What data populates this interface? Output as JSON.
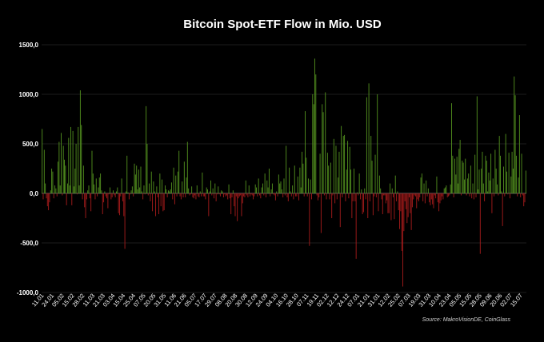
{
  "chart_data": {
    "type": "bar",
    "title": "Bitcoin Spot-ETF Flow in Mio. USD",
    "xlabel": "",
    "ylabel": "",
    "ylim": [
      -1000,
      1500
    ],
    "yticks": [
      -1000,
      -500,
      0,
      500,
      1000,
      1500
    ],
    "ytick_labels": [
      "-1000,0",
      "-500,0",
      "0,0",
      "500,0",
      "1000,0",
      "1500,0"
    ],
    "grid": true,
    "positive_color": "#4f8a1d",
    "negative_color": "#9e1a1a",
    "source": "Source: MakroVisionDE, CoinGlass",
    "x_labels": [
      "11.01",
      "24.01",
      "05.02",
      "15.02",
      "28.02",
      "11.03",
      "21.03",
      "03.04",
      "15.04",
      "25.04",
      "07.05",
      "20.05",
      "31.05",
      "11.06",
      "21.06",
      "05.07",
      "17.07",
      "29.07",
      "08.08",
      "20.08",
      "30.08",
      "12.09",
      "24.09",
      "04.10",
      "16.10",
      "28.10",
      "07.11",
      "19.11",
      "02.12",
      "12.12",
      "24.12",
      "07.01",
      "21.01",
      "31.01",
      "12.02",
      "25.02",
      "07.03",
      "19.03",
      "31.03",
      "10.04",
      "23.04",
      "05.05",
      "15.05",
      "28.05",
      "09.06",
      "20.06",
      "02.07",
      "15.07"
    ],
    "values": [
      650,
      -60,
      440,
      100,
      -50,
      -130,
      -170,
      -90,
      30,
      250,
      220,
      -50,
      80,
      50,
      -30,
      320,
      520,
      80,
      610,
      -20,
      480,
      340,
      280,
      -120,
      100,
      560,
      80,
      670,
      -120,
      630,
      70,
      250,
      500,
      -10,
      670,
      80,
      1040,
      690,
      -60,
      280,
      -140,
      -250,
      -60,
      30,
      80,
      -50,
      -180,
      430,
      200,
      90,
      -60,
      150,
      -30,
      60,
      160,
      200,
      30,
      -210,
      -90,
      20,
      -30,
      -50,
      -150,
      -10,
      60,
      -60,
      -40,
      30,
      -20,
      -40,
      20,
      60,
      -200,
      -220,
      -30,
      150,
      -80,
      -230,
      -560,
      20,
      380,
      10,
      -60,
      -10,
      30,
      70,
      -30,
      300,
      190,
      280,
      40,
      240,
      60,
      270,
      20,
      -60,
      80,
      -10,
      880,
      500,
      -20,
      100,
      -80,
      220,
      -180,
      120,
      20,
      -230,
      70,
      -40,
      -210,
      200,
      -130,
      140,
      -180,
      -170,
      80,
      40,
      -40,
      30,
      20,
      40,
      110,
      -60,
      260,
      -110,
      180,
      -30,
      220,
      430,
      -30,
      -60,
      120,
      -40,
      320,
      -40,
      160,
      520,
      50,
      -20,
      -10,
      70,
      -40,
      -50,
      -20,
      -60,
      80,
      -30,
      -40,
      20,
      -30,
      210,
      -30,
      -30,
      -60,
      60,
      40,
      -230,
      20,
      130,
      -20,
      50,
      -50,
      100,
      -80,
      -10,
      70,
      -10,
      -30,
      30,
      20,
      -40,
      -10,
      -30,
      -20,
      -60,
      90,
      -50,
      -210,
      -40,
      30,
      -130,
      -230,
      -30,
      -280,
      -50,
      -30,
      -20,
      -230,
      -100,
      -30,
      -40,
      130,
      -20,
      -40,
      80,
      -30,
      -10,
      -20,
      -60,
      -30,
      90,
      60,
      -30,
      150,
      -20,
      -50,
      60,
      100,
      -20,
      200,
      -40,
      130,
      60,
      250,
      -30,
      40,
      100,
      -10,
      -20,
      -70,
      20,
      -30,
      190,
      100,
      120,
      40,
      -40,
      150,
      -20,
      480,
      -40,
      -80,
      260,
      20,
      -30,
      80,
      -60,
      280,
      -30,
      -30,
      170,
      -70,
      260,
      60,
      420,
      300,
      -30,
      830,
      360,
      -30,
      150,
      -530,
      140,
      -60,
      1000,
      900,
      1360,
      1200,
      -20,
      -70,
      -40,
      400,
      -400,
      900,
      820,
      -20,
      1020,
      -60,
      410,
      280,
      -60,
      310,
      -250,
      -20,
      550,
      -100,
      480,
      -60,
      160,
      420,
      -340,
      680,
      -40,
      580,
      590,
      -80,
      240,
      530,
      -50,
      470,
      240,
      -250,
      -80,
      250,
      -80,
      -660,
      10,
      -20,
      200,
      -60,
      40,
      -210,
      -190,
      50,
      -60,
      970,
      -250,
      1110,
      -80,
      580,
      330,
      -220,
      -30,
      390,
      -40,
      1000,
      -180,
      180,
      50,
      -60,
      -210,
      -20,
      -20,
      -100,
      -70,
      -200,
      -200,
      100,
      -270,
      50,
      -40,
      -260,
      180,
      -80,
      20,
      -170,
      -360,
      -180,
      -580,
      -940,
      -380,
      -80,
      -160,
      -300,
      -240,
      -40,
      -200,
      -370,
      -140,
      -60,
      -20,
      -30,
      -150,
      -60,
      -80,
      -40,
      160,
      200,
      -80,
      100,
      -100,
      130,
      -30,
      50,
      -90,
      -120,
      -60,
      -110,
      -150,
      -20,
      -50,
      170,
      -90,
      -180,
      -100,
      -70,
      -30,
      -60,
      50,
      60,
      80,
      -40,
      -30,
      -20,
      90,
      910,
      380,
      -40,
      350,
      190,
      370,
      100,
      450,
      540,
      -20,
      330,
      310,
      140,
      350,
      -20,
      150,
      200,
      -30,
      280,
      -50,
      100,
      -60,
      390,
      -40,
      980,
      40,
      240,
      -610,
      250,
      420,
      100,
      -80,
      380,
      330,
      20,
      210,
      130,
      400,
      -200,
      150,
      -30,
      440,
      250,
      90,
      -20,
      580,
      380,
      20,
      -330,
      270,
      -30,
      600,
      220,
      -10,
      410,
      -50,
      170,
      420,
      250,
      1180,
      990,
      380,
      -30,
      160,
      790,
      -40,
      400,
      -20,
      -130,
      -90,
      230
    ]
  }
}
